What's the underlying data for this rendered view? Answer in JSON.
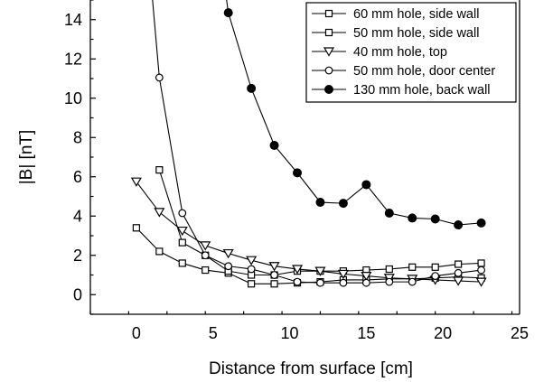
{
  "chart_data": {
    "type": "line",
    "xlabel": "Distance from surface [cm]",
    "ylabel": "|B| [nT]",
    "xlim": [
      -3,
      25
    ],
    "ylim": [
      -1,
      15
    ],
    "x_ticks": [
      0,
      5,
      10,
      15,
      20,
      25
    ],
    "y_ticks": [
      0,
      2,
      4,
      6,
      8,
      10,
      12,
      14
    ],
    "grid": false,
    "legend_position": "top-right",
    "series": [
      {
        "name": "60 mm hole, side wall",
        "marker": "square",
        "x": [
          0,
          1.5,
          3,
          4.5,
          6,
          7.5,
          9,
          10.5,
          12,
          13.5,
          15,
          16.5,
          18,
          19.5,
          21,
          22.5
        ],
        "y": [
          3.4,
          2.2,
          1.6,
          1.25,
          1.1,
          0.55,
          0.55,
          0.6,
          0.65,
          0.75,
          0.75,
          0.8,
          0.8,
          0.85,
          0.9,
          0.85
        ]
      },
      {
        "name": "50 mm hole, side wall",
        "marker": "square",
        "x": [
          1.5,
          3,
          4.5,
          6,
          7.5,
          9,
          10.5,
          12,
          13.5,
          15,
          16.5,
          18,
          19.5,
          21,
          22.5
        ],
        "y": [
          6.35,
          2.65,
          2.0,
          1.2,
          1.0,
          1.0,
          1.2,
          1.2,
          1.2,
          1.25,
          1.3,
          1.4,
          1.4,
          1.55,
          1.6
        ]
      },
      {
        "name": "40 mm hole, top",
        "marker": "triangle-down",
        "x": [
          0,
          1.5,
          3,
          4.5,
          6,
          7.5,
          9,
          10.5,
          12,
          13.5,
          15,
          16.5,
          18,
          19.5,
          21,
          22.5
        ],
        "y": [
          5.75,
          4.2,
          3.25,
          2.5,
          2.1,
          1.75,
          1.45,
          1.3,
          1.2,
          1.05,
          0.95,
          0.85,
          0.8,
          0.75,
          0.7,
          0.65
        ]
      },
      {
        "name": "50 mm hole, door center",
        "marker": "circle-open",
        "x": [
          1,
          1.5,
          3,
          4.5,
          6,
          7.5,
          9,
          10.5,
          12,
          13.5,
          15,
          16.5,
          18,
          19.5,
          21,
          22.5
        ],
        "y": [
          15.5,
          11.05,
          4.15,
          2.0,
          1.45,
          1.3,
          1.0,
          0.65,
          0.6,
          0.6,
          0.6,
          0.65,
          0.65,
          0.95,
          1.1,
          1.25
        ]
      },
      {
        "name": "130 mm hole, back wall",
        "marker": "circle-filled",
        "x": [
          5.8,
          6,
          7.5,
          9,
          10.5,
          12,
          13.5,
          15,
          16.5,
          18,
          19.5,
          21,
          22.5
        ],
        "y": [
          15.5,
          14.35,
          10.5,
          7.6,
          6.2,
          4.7,
          4.65,
          5.6,
          4.15,
          3.9,
          3.85,
          3.55,
          3.65
        ]
      }
    ]
  }
}
